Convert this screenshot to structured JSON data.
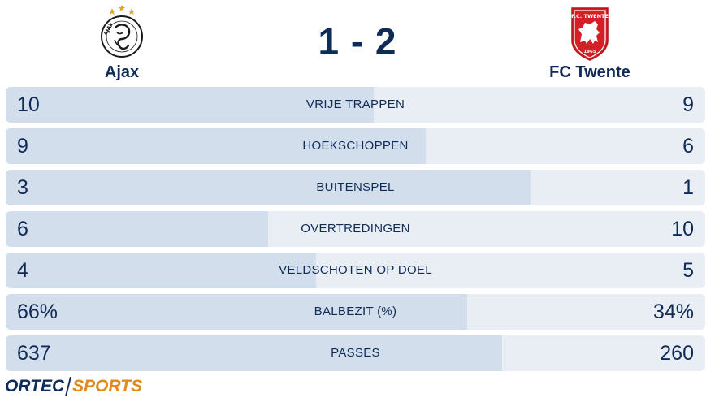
{
  "match": {
    "home": {
      "name": "Ajax",
      "crest_icon": "ajax-crest-icon",
      "crest_text": "AJAX",
      "crest_color": "#1a1a1a",
      "crest_accent": "#d7a72a"
    },
    "away": {
      "name": "FC Twente",
      "crest_icon": "twente-crest-icon",
      "crest_text_top": "F.C. TWENTE",
      "crest_text_bottom": "1965",
      "crest_color": "#d31f26"
    },
    "score": "1 - 2"
  },
  "stats": [
    {
      "label": "VRIJE TRAPPEN",
      "home": "10",
      "away": "9",
      "home_share": 0.526
    },
    {
      "label": "HOEKSCHOPPEN",
      "home": "9",
      "away": "6",
      "home_share": 0.6
    },
    {
      "label": "BUITENSPEL",
      "home": "3",
      "away": "1",
      "home_share": 0.75
    },
    {
      "label": "OVERTREDINGEN",
      "home": "6",
      "away": "10",
      "home_share": 0.375
    },
    {
      "label": "VELDSCHOTEN OP DOEL",
      "home": "4",
      "away": "5",
      "home_share": 0.444
    },
    {
      "label": "BALBEZIT (%)",
      "home": "66%",
      "away": "34%",
      "home_share": 0.66
    },
    {
      "label": "PASSES",
      "home": "637",
      "away": "260",
      "home_share": 0.71
    }
  ],
  "colors": {
    "text": "#0f2b57",
    "row_bg": "#e9eef4",
    "row_fill": "#d2deec",
    "logo_accent": "#e08a1e"
  },
  "footer": {
    "logo_part1": "ORTEC",
    "logo_part2": "SPORTS"
  }
}
